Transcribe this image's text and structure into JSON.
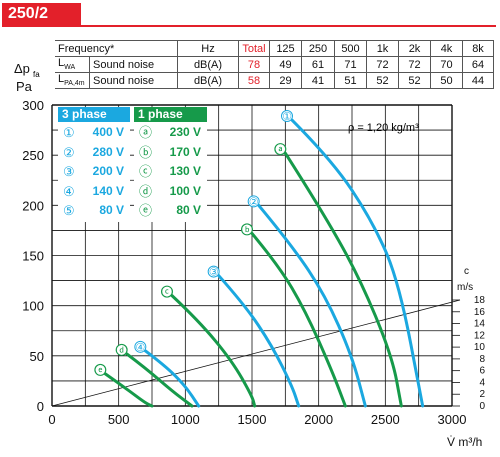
{
  "model": "250/2",
  "table": {
    "header": [
      "Frequency*",
      "Hz",
      "Total",
      "125",
      "250",
      "500",
      "1k",
      "2k",
      "4k",
      "8k"
    ],
    "rows": [
      {
        "sym": "L",
        "sub": "WA",
        "desc": "Sound noise",
        "unit": "dB(A)",
        "total": "78",
        "values": [
          "49",
          "61",
          "71",
          "72",
          "72",
          "70",
          "64"
        ]
      },
      {
        "sym": "L",
        "sub": "PA,4m",
        "desc": "Sound noise",
        "unit": "dB(A)",
        "total": "58",
        "values": [
          "29",
          "41",
          "51",
          "52",
          "52",
          "50",
          "44"
        ]
      }
    ]
  },
  "legend": {
    "three_phase": {
      "title": "3 phase",
      "items": [
        {
          "mark": "①",
          "value": "400 V"
        },
        {
          "mark": "②",
          "value": "280 V"
        },
        {
          "mark": "③",
          "value": "200 V"
        },
        {
          "mark": "④",
          "value": "140 V"
        },
        {
          "mark": "⑤",
          "value": "80 V"
        }
      ]
    },
    "one_phase": {
      "title": "1 phase",
      "items": [
        {
          "mark": "ⓐ",
          "value": "230 V"
        },
        {
          "mark": "ⓑ",
          "value": "170 V"
        },
        {
          "mark": "ⓒ",
          "value": "130 V"
        },
        {
          "mark": "ⓓ",
          "value": "100 V"
        },
        {
          "mark": "ⓔ",
          "value": "80 V"
        }
      ]
    }
  },
  "density_note": "ρ = 1,20 kg/m³",
  "colors": {
    "three_phase": "#1ba8e0",
    "one_phase": "#169a4a",
    "accent": "#e3202a",
    "grid": "#111111"
  },
  "chart_data": {
    "type": "line",
    "x_unit": "V̇ m³/h",
    "y_unit_top": "Δp",
    "y_unit_sub": "fa",
    "y_unit_bottom": "Pa",
    "xlim": [
      0,
      3000
    ],
    "ylim": [
      0,
      300
    ],
    "x_ticks": [
      "0",
      "500",
      "1000",
      "1500",
      "2000",
      "2500",
      "3000"
    ],
    "y_ticks": [
      "0",
      "50",
      "100",
      "150",
      "200",
      "250",
      "300"
    ],
    "grid": true,
    "right_axis": {
      "label_top": "c",
      "label_bottom": "m/s",
      "max": 18,
      "ticks": [
        "0",
        "2",
        "4",
        "6",
        "8",
        "10",
        "12",
        "14",
        "16",
        "18"
      ]
    },
    "series": [
      {
        "name": "①",
        "group": "3 phase",
        "points": [
          [
            1800,
            285
          ],
          [
            2100,
            245
          ],
          [
            2400,
            185
          ],
          [
            2600,
            125
          ],
          [
            2780,
            0
          ]
        ]
      },
      {
        "name": "②",
        "group": "3 phase",
        "points": [
          [
            1550,
            200
          ],
          [
            1800,
            160
          ],
          [
            2050,
            110
          ],
          [
            2250,
            50
          ],
          [
            2350,
            0
          ]
        ]
      },
      {
        "name": "③",
        "group": "3 phase",
        "points": [
          [
            1250,
            130
          ],
          [
            1450,
            100
          ],
          [
            1650,
            60
          ],
          [
            1800,
            20
          ],
          [
            1850,
            0
          ]
        ]
      },
      {
        "name": "④",
        "group": "3 phase",
        "points": [
          [
            700,
            55
          ],
          [
            850,
            40
          ],
          [
            1000,
            20
          ],
          [
            1100,
            0
          ]
        ]
      },
      {
        "name": "ⓐ",
        "group": "1 phase",
        "points": [
          [
            1750,
            252
          ],
          [
            2000,
            200
          ],
          [
            2300,
            130
          ],
          [
            2550,
            50
          ],
          [
            2620,
            0
          ]
        ]
      },
      {
        "name": "ⓑ",
        "group": "1 phase",
        "points": [
          [
            1500,
            172
          ],
          [
            1700,
            140
          ],
          [
            1900,
            95
          ],
          [
            2100,
            35
          ],
          [
            2200,
            0
          ]
        ]
      },
      {
        "name": "ⓒ",
        "group": "1 phase",
        "points": [
          [
            900,
            110
          ],
          [
            1100,
            85
          ],
          [
            1350,
            45
          ],
          [
            1500,
            10
          ],
          [
            1520,
            0
          ]
        ]
      },
      {
        "name": "ⓓ",
        "group": "1 phase",
        "points": [
          [
            560,
            52
          ],
          [
            700,
            38
          ],
          [
            900,
            15
          ],
          [
            1050,
            0
          ]
        ]
      },
      {
        "name": "ⓔ",
        "group": "1 phase",
        "points": [
          [
            400,
            32
          ],
          [
            550,
            18
          ],
          [
            700,
            3
          ],
          [
            750,
            0
          ]
        ]
      }
    ]
  }
}
